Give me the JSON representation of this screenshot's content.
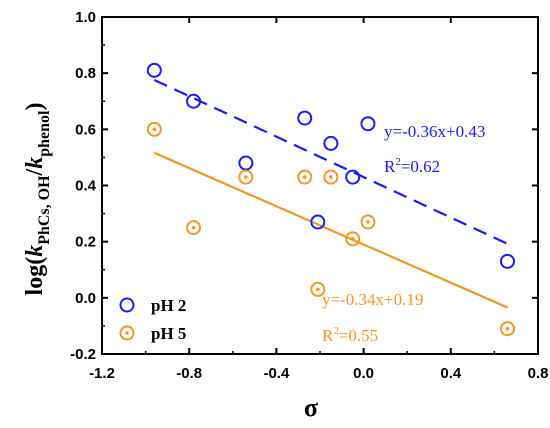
{
  "chart_data": {
    "type": "scatter",
    "xlabel": "σ",
    "ylabel": {
      "prefix": "log(",
      "k1": "k",
      "sub1": "PhCs, OH",
      "slash": "/",
      "k2": "k",
      "sub2": "phenol",
      "suffix": ")"
    },
    "xlim": [
      -1.2,
      0.8
    ],
    "ylim": [
      -0.2,
      1.0
    ],
    "xticks": [
      -1.2,
      -0.8,
      -0.4,
      0.0,
      0.4,
      0.8
    ],
    "xtick_labels": [
      "-1.2",
      "-0.8",
      "-0.4",
      "0.0",
      "0.4",
      "0.8"
    ],
    "yticks": [
      -0.2,
      0.0,
      0.2,
      0.4,
      0.6,
      0.8,
      1.0
    ],
    "ytick_labels": [
      "-0.2",
      "0.0",
      "0.2",
      "0.4",
      "0.6",
      "0.8",
      "1.0"
    ],
    "grid": false,
    "legend_position": "bottom-left",
    "series": [
      {
        "name": "pH 2",
        "color": "#1a1aff",
        "marker": "open-circle",
        "points": [
          {
            "x": -0.96,
            "y": 0.81
          },
          {
            "x": -0.78,
            "y": 0.7
          },
          {
            "x": -0.54,
            "y": 0.48
          },
          {
            "x": -0.27,
            "y": 0.64
          },
          {
            "x": -0.21,
            "y": 0.27
          },
          {
            "x": -0.15,
            "y": 0.55
          },
          {
            "x": -0.05,
            "y": 0.43
          },
          {
            "x": 0.02,
            "y": 0.62
          },
          {
            "x": 0.66,
            "y": 0.13
          }
        ],
        "fit": {
          "slope": -0.36,
          "intercept": 0.43,
          "style": "dashed",
          "x_range": [
            -0.96,
            0.66
          ]
        },
        "equation": "y=-0.36x+0.43",
        "r2_prefix": "R",
        "r2_sup": "2",
        "r2_value": "=0.62"
      },
      {
        "name": "pH 5",
        "color": "#f5961e",
        "marker": "dotted-circle",
        "points": [
          {
            "x": -0.96,
            "y": 0.6
          },
          {
            "x": -0.78,
            "y": 0.25
          },
          {
            "x": -0.54,
            "y": 0.43
          },
          {
            "x": -0.27,
            "y": 0.43
          },
          {
            "x": -0.21,
            "y": 0.03
          },
          {
            "x": -0.15,
            "y": 0.43
          },
          {
            "x": -0.05,
            "y": 0.21
          },
          {
            "x": 0.02,
            "y": 0.27
          },
          {
            "x": 0.66,
            "y": -0.11
          }
        ],
        "fit": {
          "slope": -0.34,
          "intercept": 0.19,
          "style": "solid",
          "x_range": [
            -0.96,
            0.66
          ]
        },
        "equation": "y=-0.34x+0.19",
        "r2_prefix": "R",
        "r2_sup": "2",
        "r2_value": "=0.55"
      }
    ]
  }
}
